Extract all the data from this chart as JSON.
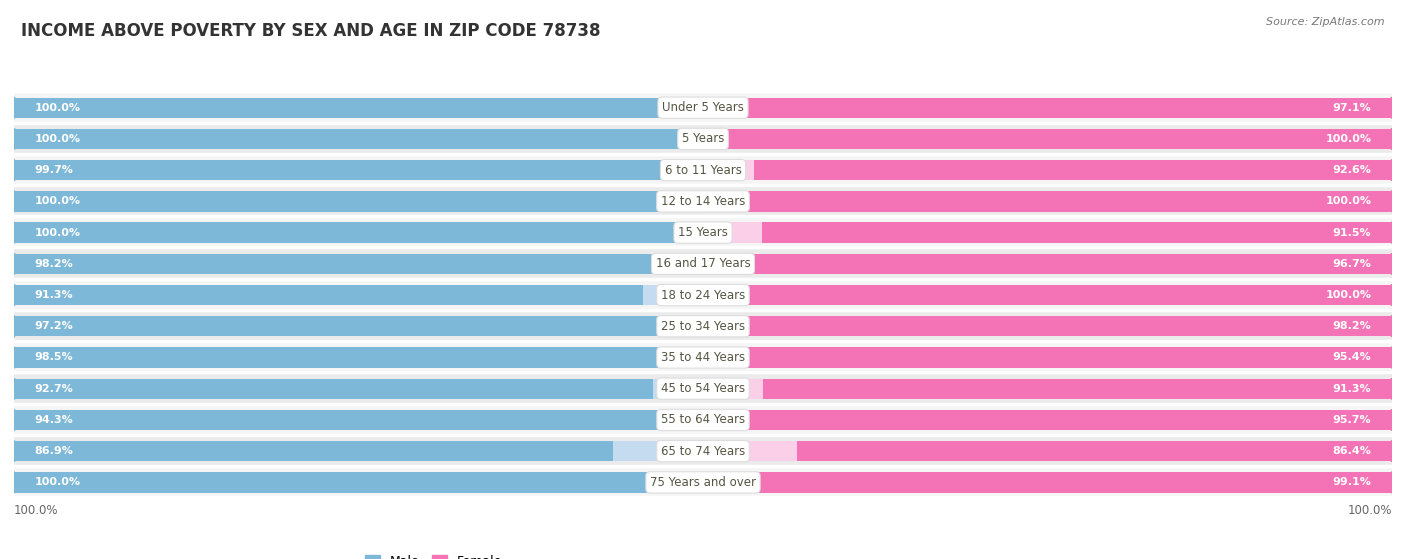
{
  "title": "INCOME ABOVE POVERTY BY SEX AND AGE IN ZIP CODE 78738",
  "source": "Source: ZipAtlas.com",
  "categories": [
    "Under 5 Years",
    "5 Years",
    "6 to 11 Years",
    "12 to 14 Years",
    "15 Years",
    "16 and 17 Years",
    "18 to 24 Years",
    "25 to 34 Years",
    "35 to 44 Years",
    "45 to 54 Years",
    "55 to 64 Years",
    "65 to 74 Years",
    "75 Years and over"
  ],
  "male_values": [
    100.0,
    100.0,
    99.7,
    100.0,
    100.0,
    98.2,
    91.3,
    97.2,
    98.5,
    92.7,
    94.3,
    86.9,
    100.0
  ],
  "female_values": [
    97.1,
    100.0,
    92.6,
    100.0,
    91.5,
    96.7,
    100.0,
    98.2,
    95.4,
    91.3,
    95.7,
    86.4,
    99.1
  ],
  "male_color": "#7DB8D8",
  "female_color": "#F472B6",
  "male_light_color": "#C5DCF0",
  "female_light_color": "#FBCFE8",
  "background_color": "#ffffff",
  "row_bg_color": "#f0f0f0",
  "title_fontsize": 12,
  "label_fontsize": 8.5,
  "value_fontsize": 8,
  "legend_fontsize": 9,
  "source_fontsize": 8,
  "max_value": 100.0,
  "bottom_label_male": "100.0%",
  "bottom_label_female": "100.0%"
}
